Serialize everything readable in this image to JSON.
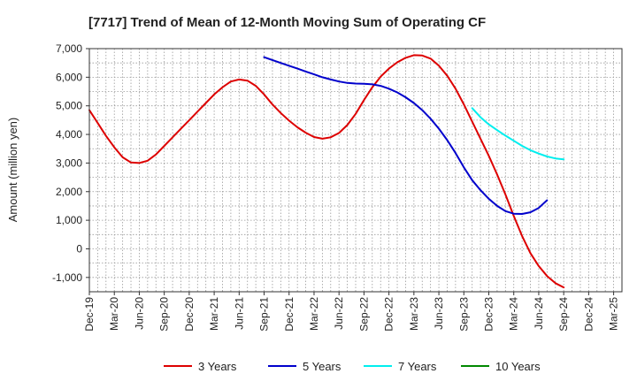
{
  "chart_data": {
    "type": "line",
    "title": "[7717]  Trend of Mean of 12-Month Moving Sum of Operating CF",
    "xlabel": "",
    "ylabel": "Amount (million yen)",
    "ylim": [
      -1500,
      7000
    ],
    "yticks": [
      -1000,
      0,
      1000,
      2000,
      3000,
      4000,
      5000,
      6000,
      7000
    ],
    "ytick_labels": [
      "-1,000",
      "0",
      "1,000",
      "2,000",
      "3,000",
      "4,000",
      "5,000",
      "6,000",
      "7,000"
    ],
    "x_start": "Dec-19",
    "x_months": 64,
    "x_tick_labels": [
      "Dec-19",
      "Mar-20",
      "Jun-20",
      "Sep-20",
      "Dec-20",
      "Mar-21",
      "Jun-21",
      "Sep-21",
      "Dec-21",
      "Mar-22",
      "Jun-22",
      "Sep-22",
      "Dec-22",
      "Mar-23",
      "Jun-23",
      "Sep-23",
      "Dec-23",
      "Mar-24",
      "Jun-24",
      "Sep-24",
      "Dec-24",
      "Mar-25"
    ],
    "grid": true,
    "legend_position": "bottom",
    "series": [
      {
        "name": "3 Years",
        "color": "#dd0000",
        "start_index": 0,
        "values": [
          4850,
          4400,
          3950,
          3550,
          3200,
          3020,
          3000,
          3080,
          3300,
          3600,
          3900,
          4200,
          4500,
          4800,
          5100,
          5400,
          5650,
          5850,
          5920,
          5880,
          5700,
          5400,
          5050,
          4750,
          4480,
          4250,
          4060,
          3910,
          3850,
          3900,
          4050,
          4330,
          4720,
          5200,
          5650,
          6020,
          6300,
          6520,
          6680,
          6770,
          6760,
          6650,
          6400,
          6050,
          5600,
          5050,
          4450,
          3850,
          3250,
          2600,
          1900,
          1150,
          450,
          -150,
          -600,
          -950,
          -1200,
          -1350
        ]
      },
      {
        "name": "5 Years",
        "color": "#0000cc",
        "start_index": 21,
        "values": [
          6700,
          6600,
          6500,
          6400,
          6300,
          6200,
          6100,
          6000,
          5920,
          5850,
          5800,
          5780,
          5770,
          5750,
          5700,
          5600,
          5470,
          5300,
          5100,
          4850,
          4550,
          4200,
          3800,
          3350,
          2850,
          2400,
          2050,
          1750,
          1500,
          1320,
          1230,
          1220,
          1280,
          1430,
          1700
        ]
      },
      {
        "name": "7 Years",
        "color": "#00eeee",
        "start_index": 46,
        "values": [
          4920,
          4600,
          4350,
          4150,
          3960,
          3780,
          3600,
          3450,
          3330,
          3230,
          3160,
          3130
        ]
      },
      {
        "name": "10 Years",
        "color": "#008800",
        "start_index": 0,
        "values": []
      }
    ]
  }
}
